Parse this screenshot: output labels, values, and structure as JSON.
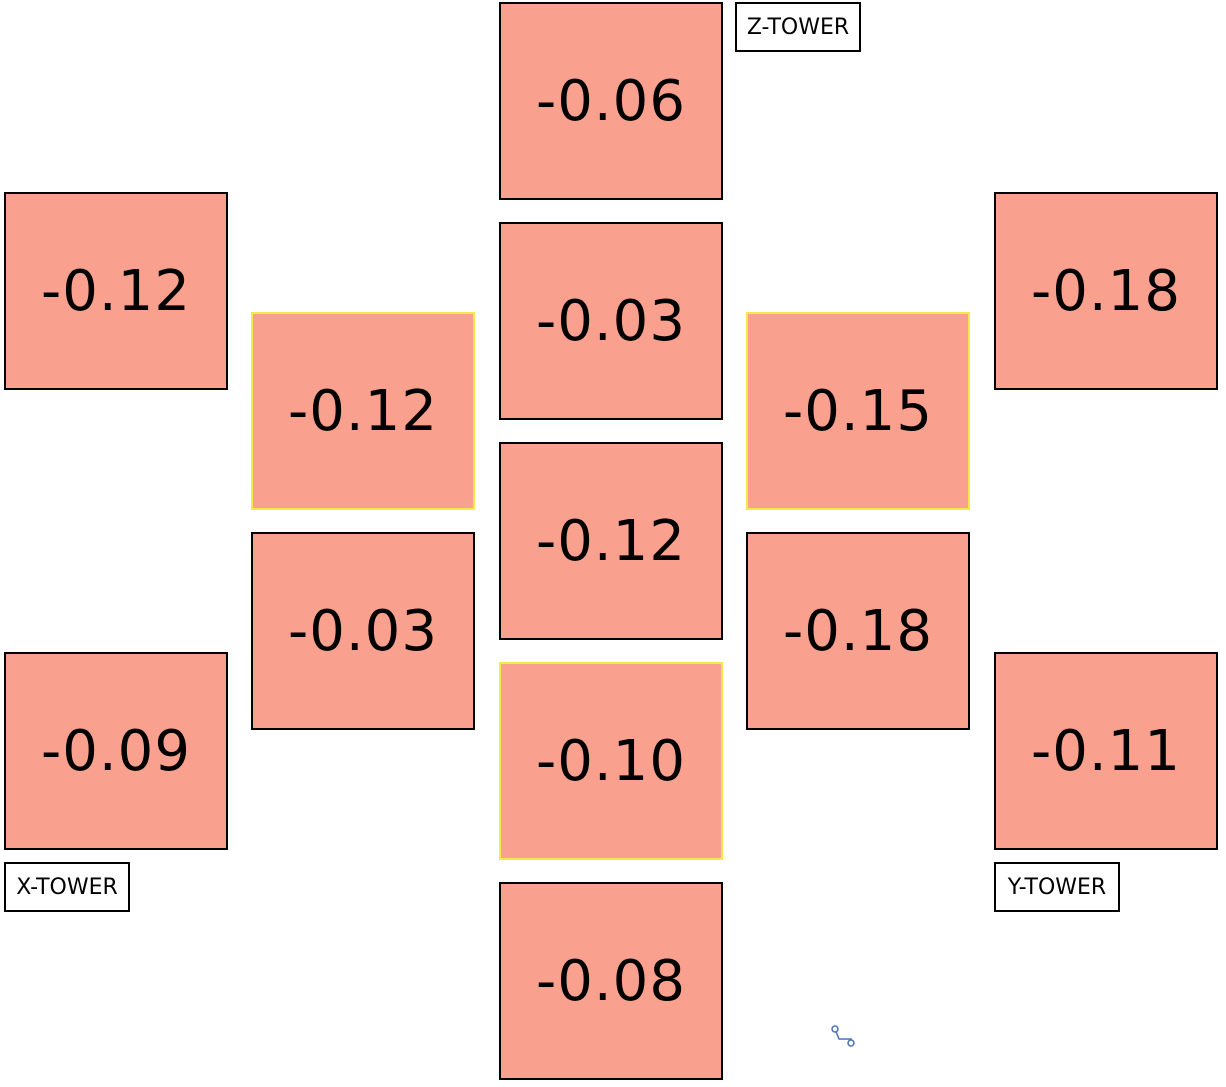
{
  "tiles": [
    {
      "value": "-0.06",
      "color": "#f9a08e",
      "highlight": false
    },
    {
      "value": "-0.03",
      "color": "#f9a08e",
      "highlight": false
    },
    {
      "value": "-0.12",
      "color": "#f9a08e",
      "highlight": false
    },
    {
      "value": "-0.10",
      "color": "#f9a08e",
      "highlight": true
    },
    {
      "value": "-0.08",
      "color": "#f9a08e",
      "highlight": false
    },
    {
      "value": "-0.12",
      "color": "#f9a08e",
      "highlight": true
    },
    {
      "value": "-0.03",
      "color": "#f9a08e",
      "highlight": false
    },
    {
      "value": "-0.15",
      "color": "#f9a08e",
      "highlight": true
    },
    {
      "value": "-0.18",
      "color": "#f9a08e",
      "highlight": false
    },
    {
      "value": "-0.12",
      "color": "#f9a08e",
      "highlight": false
    },
    {
      "value": "-0.09",
      "color": "#f9a08e",
      "highlight": false
    },
    {
      "value": "-0.18",
      "color": "#f9a08e",
      "highlight": false
    },
    {
      "value": "-0.11",
      "color": "#f9a08e",
      "highlight": false
    }
  ],
  "labels": {
    "z_tower": "Z-TOWER",
    "x_tower": "X-TOWER",
    "y_tower": "Y-TOWER"
  },
  "colors": {
    "tile_fill": "#f9a08e",
    "tile_border": "#000000",
    "highlight_border": "#f5e94a",
    "handle": "#4a72b8"
  },
  "icons": {
    "handle": "connector-handle-icon"
  }
}
